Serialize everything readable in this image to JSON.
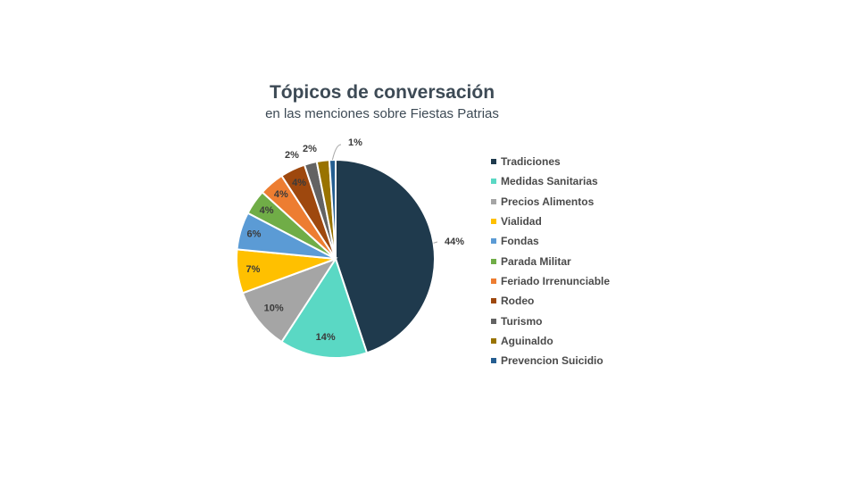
{
  "chart_data": {
    "type": "pie",
    "title": "Tópicos de conversación",
    "subtitle": "en las menciones sobre Fiestas Patrias",
    "categories": [
      "Tradiciones",
      "Medidas Sanitarias",
      "Precios Alimentos",
      "Vialidad",
      "Fondas",
      "Parada Militar",
      "Feriado Irrenunciable",
      "Rodeo",
      "Turismo",
      "Aguinaldo",
      "Prevencion Suicidio"
    ],
    "values": [
      44,
      14,
      10,
      7,
      6,
      4,
      4,
      4,
      2,
      2,
      1
    ],
    "labels": [
      "44%",
      "14%",
      "10%",
      "7%",
      "6%",
      "4%",
      "4%",
      "4%",
      "2%",
      "2%",
      "1%"
    ],
    "colors": [
      "#1f3a4d",
      "#5ad8c4",
      "#a5a5a5",
      "#ffc000",
      "#5b9bd5",
      "#70ad47",
      "#ed7d31",
      "#9e480e",
      "#636363",
      "#997300",
      "#255e91"
    ],
    "legend_position": "right"
  }
}
